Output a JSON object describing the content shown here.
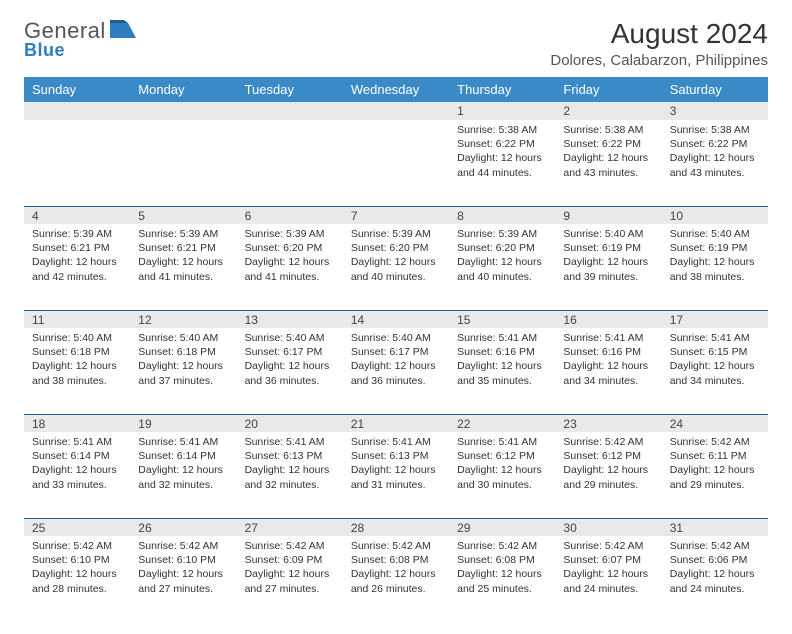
{
  "brand": {
    "name1": "General",
    "name2": "Blue"
  },
  "title": "August 2024",
  "location": "Dolores, Calabarzon, Philippines",
  "colors": {
    "header_bg": "#3a8ac8",
    "header_text": "#ffffff",
    "daynum_bg": "#e9e9e9",
    "rule": "#1f5d94",
    "brand_gray": "#555555",
    "brand_blue": "#2d7dc0",
    "text": "#333333"
  },
  "daysOfWeek": [
    "Sunday",
    "Monday",
    "Tuesday",
    "Wednesday",
    "Thursday",
    "Friday",
    "Saturday"
  ],
  "weeks": [
    {
      "nums": [
        "",
        "",
        "",
        "",
        "1",
        "2",
        "3"
      ],
      "cells": [
        null,
        null,
        null,
        null,
        {
          "sr": "Sunrise: 5:38 AM",
          "ss": "Sunset: 6:22 PM",
          "dl1": "Daylight: 12 hours",
          "dl2": "and 44 minutes."
        },
        {
          "sr": "Sunrise: 5:38 AM",
          "ss": "Sunset: 6:22 PM",
          "dl1": "Daylight: 12 hours",
          "dl2": "and 43 minutes."
        },
        {
          "sr": "Sunrise: 5:38 AM",
          "ss": "Sunset: 6:22 PM",
          "dl1": "Daylight: 12 hours",
          "dl2": "and 43 minutes."
        }
      ]
    },
    {
      "nums": [
        "4",
        "5",
        "6",
        "7",
        "8",
        "9",
        "10"
      ],
      "cells": [
        {
          "sr": "Sunrise: 5:39 AM",
          "ss": "Sunset: 6:21 PM",
          "dl1": "Daylight: 12 hours",
          "dl2": "and 42 minutes."
        },
        {
          "sr": "Sunrise: 5:39 AM",
          "ss": "Sunset: 6:21 PM",
          "dl1": "Daylight: 12 hours",
          "dl2": "and 41 minutes."
        },
        {
          "sr": "Sunrise: 5:39 AM",
          "ss": "Sunset: 6:20 PM",
          "dl1": "Daylight: 12 hours",
          "dl2": "and 41 minutes."
        },
        {
          "sr": "Sunrise: 5:39 AM",
          "ss": "Sunset: 6:20 PM",
          "dl1": "Daylight: 12 hours",
          "dl2": "and 40 minutes."
        },
        {
          "sr": "Sunrise: 5:39 AM",
          "ss": "Sunset: 6:20 PM",
          "dl1": "Daylight: 12 hours",
          "dl2": "and 40 minutes."
        },
        {
          "sr": "Sunrise: 5:40 AM",
          "ss": "Sunset: 6:19 PM",
          "dl1": "Daylight: 12 hours",
          "dl2": "and 39 minutes."
        },
        {
          "sr": "Sunrise: 5:40 AM",
          "ss": "Sunset: 6:19 PM",
          "dl1": "Daylight: 12 hours",
          "dl2": "and 38 minutes."
        }
      ]
    },
    {
      "nums": [
        "11",
        "12",
        "13",
        "14",
        "15",
        "16",
        "17"
      ],
      "cells": [
        {
          "sr": "Sunrise: 5:40 AM",
          "ss": "Sunset: 6:18 PM",
          "dl1": "Daylight: 12 hours",
          "dl2": "and 38 minutes."
        },
        {
          "sr": "Sunrise: 5:40 AM",
          "ss": "Sunset: 6:18 PM",
          "dl1": "Daylight: 12 hours",
          "dl2": "and 37 minutes."
        },
        {
          "sr": "Sunrise: 5:40 AM",
          "ss": "Sunset: 6:17 PM",
          "dl1": "Daylight: 12 hours",
          "dl2": "and 36 minutes."
        },
        {
          "sr": "Sunrise: 5:40 AM",
          "ss": "Sunset: 6:17 PM",
          "dl1": "Daylight: 12 hours",
          "dl2": "and 36 minutes."
        },
        {
          "sr": "Sunrise: 5:41 AM",
          "ss": "Sunset: 6:16 PM",
          "dl1": "Daylight: 12 hours",
          "dl2": "and 35 minutes."
        },
        {
          "sr": "Sunrise: 5:41 AM",
          "ss": "Sunset: 6:16 PM",
          "dl1": "Daylight: 12 hours",
          "dl2": "and 34 minutes."
        },
        {
          "sr": "Sunrise: 5:41 AM",
          "ss": "Sunset: 6:15 PM",
          "dl1": "Daylight: 12 hours",
          "dl2": "and 34 minutes."
        }
      ]
    },
    {
      "nums": [
        "18",
        "19",
        "20",
        "21",
        "22",
        "23",
        "24"
      ],
      "cells": [
        {
          "sr": "Sunrise: 5:41 AM",
          "ss": "Sunset: 6:14 PM",
          "dl1": "Daylight: 12 hours",
          "dl2": "and 33 minutes."
        },
        {
          "sr": "Sunrise: 5:41 AM",
          "ss": "Sunset: 6:14 PM",
          "dl1": "Daylight: 12 hours",
          "dl2": "and 32 minutes."
        },
        {
          "sr": "Sunrise: 5:41 AM",
          "ss": "Sunset: 6:13 PM",
          "dl1": "Daylight: 12 hours",
          "dl2": "and 32 minutes."
        },
        {
          "sr": "Sunrise: 5:41 AM",
          "ss": "Sunset: 6:13 PM",
          "dl1": "Daylight: 12 hours",
          "dl2": "and 31 minutes."
        },
        {
          "sr": "Sunrise: 5:41 AM",
          "ss": "Sunset: 6:12 PM",
          "dl1": "Daylight: 12 hours",
          "dl2": "and 30 minutes."
        },
        {
          "sr": "Sunrise: 5:42 AM",
          "ss": "Sunset: 6:12 PM",
          "dl1": "Daylight: 12 hours",
          "dl2": "and 29 minutes."
        },
        {
          "sr": "Sunrise: 5:42 AM",
          "ss": "Sunset: 6:11 PM",
          "dl1": "Daylight: 12 hours",
          "dl2": "and 29 minutes."
        }
      ]
    },
    {
      "nums": [
        "25",
        "26",
        "27",
        "28",
        "29",
        "30",
        "31"
      ],
      "cells": [
        {
          "sr": "Sunrise: 5:42 AM",
          "ss": "Sunset: 6:10 PM",
          "dl1": "Daylight: 12 hours",
          "dl2": "and 28 minutes."
        },
        {
          "sr": "Sunrise: 5:42 AM",
          "ss": "Sunset: 6:10 PM",
          "dl1": "Daylight: 12 hours",
          "dl2": "and 27 minutes."
        },
        {
          "sr": "Sunrise: 5:42 AM",
          "ss": "Sunset: 6:09 PM",
          "dl1": "Daylight: 12 hours",
          "dl2": "and 27 minutes."
        },
        {
          "sr": "Sunrise: 5:42 AM",
          "ss": "Sunset: 6:08 PM",
          "dl1": "Daylight: 12 hours",
          "dl2": "and 26 minutes."
        },
        {
          "sr": "Sunrise: 5:42 AM",
          "ss": "Sunset: 6:08 PM",
          "dl1": "Daylight: 12 hours",
          "dl2": "and 25 minutes."
        },
        {
          "sr": "Sunrise: 5:42 AM",
          "ss": "Sunset: 6:07 PM",
          "dl1": "Daylight: 12 hours",
          "dl2": "and 24 minutes."
        },
        {
          "sr": "Sunrise: 5:42 AM",
          "ss": "Sunset: 6:06 PM",
          "dl1": "Daylight: 12 hours",
          "dl2": "and 24 minutes."
        }
      ]
    }
  ]
}
